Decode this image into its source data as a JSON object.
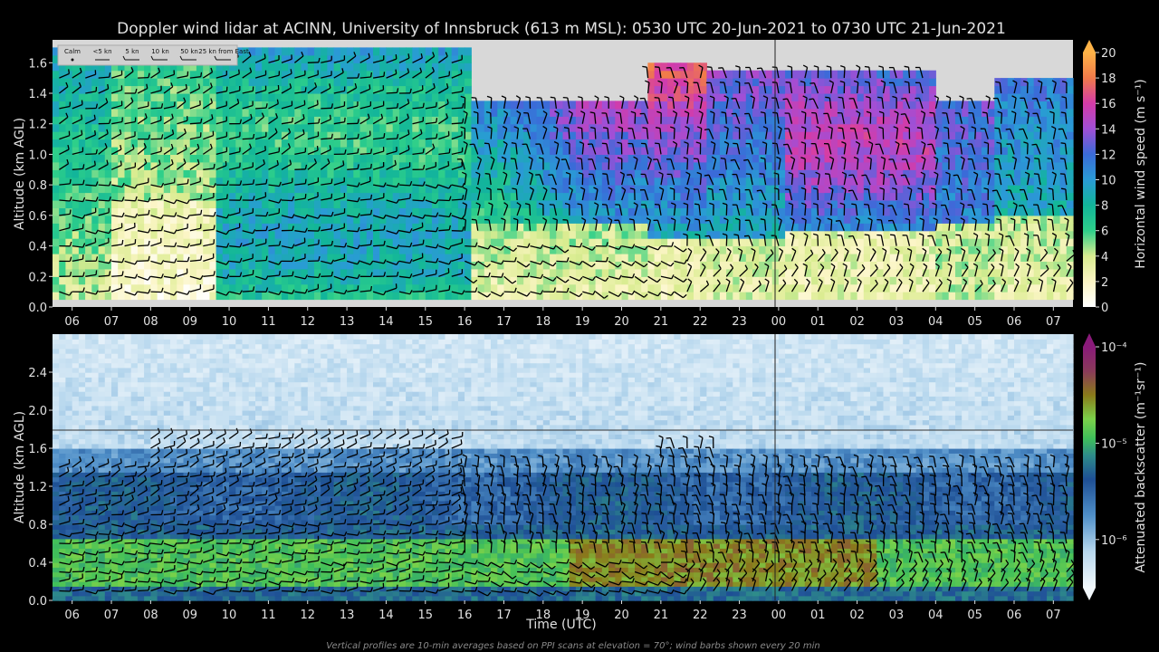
{
  "title": "Doppler wind lidar at ACINN, University of Innsbruck (613 m MSL): 0530 UTC 20-Jun-2021 to 0730 UTC 21-Jun-2021",
  "footer": "Vertical profiles are 10-min averages based on PPI scans at elevation = 70°; wind barbs shown every 20 min",
  "xlabel": "Time (UTC)",
  "x_ticks": [
    "06",
    "07",
    "08",
    "09",
    "10",
    "11",
    "12",
    "13",
    "14",
    "15",
    "16",
    "17",
    "18",
    "19",
    "20",
    "21",
    "22",
    "23",
    "00",
    "01",
    "02",
    "03",
    "04",
    "05",
    "06",
    "07"
  ],
  "legend": [
    "Calm",
    "<5 kn",
    "5 kn",
    "10 kn",
    "50 kn",
    "25 kn from East"
  ],
  "colors": {
    "background": "#000000",
    "text": "#e0e0e0",
    "panel_missing": "#d8d8d8"
  },
  "chart_data": [
    {
      "type": "heatmap",
      "panel": "wind speed",
      "ylabel": "Altitude (km AGL)",
      "ylim": [
        0.0,
        1.75
      ],
      "y_ticks": [
        "0.0",
        "0.2",
        "0.4",
        "0.6",
        "0.8",
        "1.0",
        "1.2",
        "1.4",
        "1.6"
      ],
      "xlim_hours_after_0530": [
        0,
        26
      ],
      "colorbar_label": "Horizontal wind speed (m s⁻¹)",
      "colorbar_ticks": [
        "0",
        "2",
        "4",
        "6",
        "8",
        "10",
        "12",
        "14",
        "16",
        "18",
        "20"
      ],
      "colorbar_range": [
        0,
        20
      ],
      "data_top_km_by_period": [
        {
          "from": "0530",
          "to": "1600",
          "top": 1.7
        },
        {
          "from": "1600",
          "to": "2030",
          "top": 1.35
        },
        {
          "from": "2030",
          "to": "2200",
          "top": 1.6
        },
        {
          "from": "2200",
          "to": "0000",
          "top": 1.55
        },
        {
          "from": "0000",
          "to": "0400",
          "top": 1.55
        },
        {
          "from": "0400",
          "to": "0530",
          "top": 1.35
        },
        {
          "from": "0530",
          "to": "0730",
          "top": 1.5
        }
      ],
      "features": [
        "Weak winds (0–4 m/s) below 0.8 km from 0700 to 0930 UTC",
        "Winds 6–10 m/s through most of the column 1000–1600 UTC",
        "Maximum 14–16 m/s between 0.8 and 1.3 km around 2100–2200 UTC and 0100–0300 UTC",
        "Weak winds (2–5 m/s) below 0.5 km at night"
      ]
    },
    {
      "type": "heatmap",
      "panel": "attenuated backscatter",
      "ylabel": "Altitude (km AGL)",
      "ylim": [
        0.0,
        2.8
      ],
      "y_ticks": [
        "0.0",
        "0.4",
        "0.8",
        "1.2",
        "1.6",
        "2.0",
        "2.4"
      ],
      "xlim_hours_after_0530": [
        0,
        26
      ],
      "colorbar_label": "Attenuated backscatter (m⁻¹sr⁻¹)",
      "colorbar_ticks": [
        "10⁻⁶",
        "10⁻⁵",
        "10⁻⁴"
      ],
      "colorbar_range_log10": [
        -6.5,
        -4
      ],
      "reference_line_km": 1.8,
      "features": [
        "High backscatter (10⁻⁵ to 10⁻⁴) in the layer 0.2–0.6 km",
        "Strong backscatter layer around 0.8–1.3 km",
        "Weak backscatter above 1.6 km"
      ]
    }
  ]
}
